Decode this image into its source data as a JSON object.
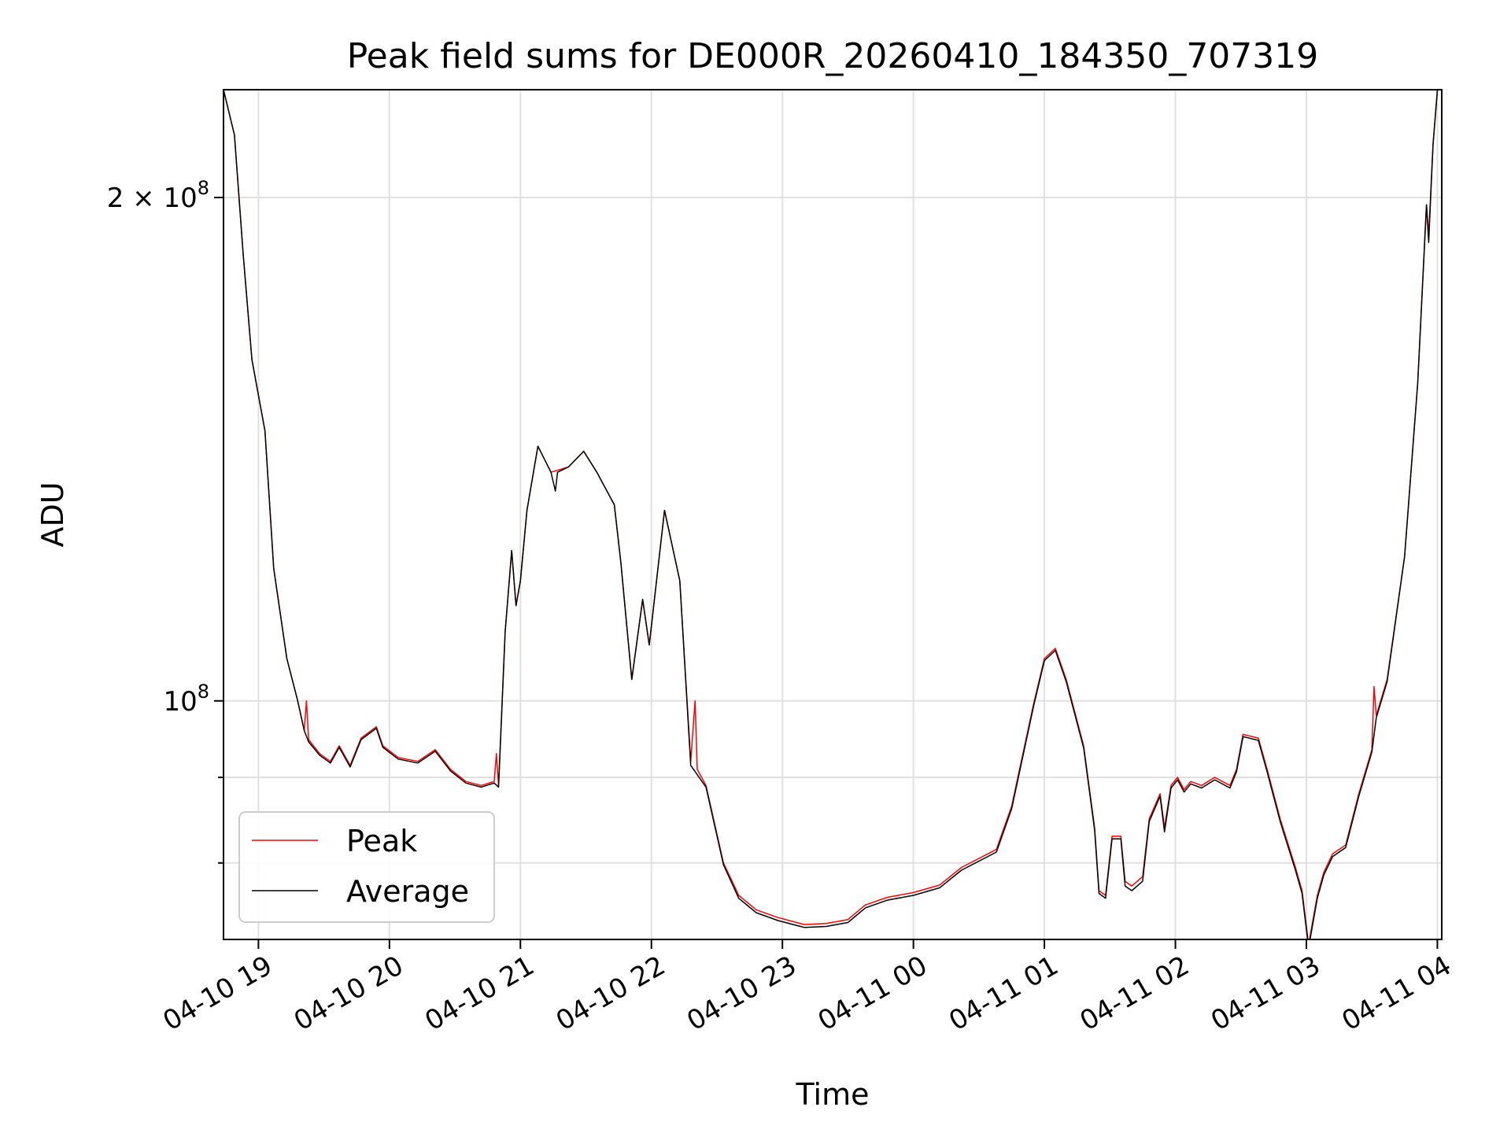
{
  "chart_data": {
    "type": "line",
    "title": "Peak field sums for DE000R_20260410_184350_707319",
    "xlabel": "Time",
    "ylabel": "ADU",
    "y_scale": "log",
    "grid": true,
    "legend_placement": "lower-left",
    "xlim": [
      "2026-04-10 18:44",
      "2026-04-11 04:02"
    ],
    "ylim": [
      72000000,
      232000000
    ],
    "x_ticks": [
      "04-10 19",
      "04-10 20",
      "04-10 21",
      "04-10 22",
      "04-10 23",
      "04-11 00",
      "04-11 01",
      "04-11 02",
      "04-11 03",
      "04-11 04"
    ],
    "y_ticks": [
      {
        "value": 200000000,
        "label": "2 × 10^8",
        "mantissa": "2",
        "exponent": "8"
      },
      {
        "value": 100000000,
        "label": "10^8",
        "mantissa": "",
        "exponent": "8"
      }
    ],
    "series": [
      {
        "name": "Peak",
        "color": "#ff0000",
        "points": [
          [
            "2026-04-10 18:44",
            232000000
          ],
          [
            "2026-04-10 18:49",
            218000000
          ],
          [
            "2026-04-10 18:53",
            185000000
          ],
          [
            "2026-04-10 18:57",
            160000000
          ],
          [
            "2026-04-10 19:03",
            145000000
          ],
          [
            "2026-04-10 19:07",
            120000000
          ],
          [
            "2026-04-10 19:13",
            106000000
          ],
          [
            "2026-04-10 19:18",
            100000000
          ],
          [
            "2026-04-10 19:21",
            96000000
          ],
          [
            "2026-04-10 19:22",
            100000000
          ],
          [
            "2026-04-10 19:23",
            94800000
          ],
          [
            "2026-04-10 19:28",
            93000000
          ],
          [
            "2026-04-10 19:33",
            92000000
          ],
          [
            "2026-04-10 19:37",
            94000000
          ],
          [
            "2026-04-10 19:42",
            91500000
          ],
          [
            "2026-04-10 19:47",
            95000000
          ],
          [
            "2026-04-10 19:54",
            96500000
          ],
          [
            "2026-04-10 19:57",
            94000000
          ],
          [
            "2026-04-10 20:04",
            92500000
          ],
          [
            "2026-04-10 20:13",
            92000000
          ],
          [
            "2026-04-10 20:21",
            93500000
          ],
          [
            "2026-04-10 20:28",
            91000000
          ],
          [
            "2026-04-10 20:35",
            89500000
          ],
          [
            "2026-04-10 20:42",
            89000000
          ],
          [
            "2026-04-10 20:48",
            89500000
          ],
          [
            "2026-04-10 20:49",
            93000000
          ],
          [
            "2026-04-10 20:50",
            89000000
          ],
          [
            "2026-04-10 20:53",
            110000000
          ],
          [
            "2026-04-10 20:56",
            123000000
          ],
          [
            "2026-04-10 20:58",
            114000000
          ],
          [
            "2026-04-10 21:00",
            118000000
          ],
          [
            "2026-04-10 21:03",
            130000000
          ],
          [
            "2026-04-10 21:08",
            142000000
          ],
          [
            "2026-04-10 21:14",
            137000000
          ],
          [
            "2026-04-10 21:22",
            138000000
          ],
          [
            "2026-04-10 21:29",
            141000000
          ],
          [
            "2026-04-10 21:35",
            137000000
          ],
          [
            "2026-04-10 21:43",
            131000000
          ],
          [
            "2026-04-10 21:46",
            121000000
          ],
          [
            "2026-04-10 21:51",
            103000000
          ],
          [
            "2026-04-10 21:56",
            115000000
          ],
          [
            "2026-04-10 21:59",
            108000000
          ],
          [
            "2026-04-10 22:06",
            130000000
          ],
          [
            "2026-04-10 22:13",
            118000000
          ],
          [
            "2026-04-10 22:18",
            92000000
          ],
          [
            "2026-04-10 22:20",
            100000000
          ],
          [
            "2026-04-10 22:21",
            91000000
          ],
          [
            "2026-04-10 22:25",
            89000000
          ],
          [
            "2026-04-10 22:33",
            80000000
          ],
          [
            "2026-04-10 22:40",
            76500000
          ],
          [
            "2026-04-10 22:48",
            75000000
          ],
          [
            "2026-04-10 22:58",
            74200000
          ],
          [
            "2026-04-10 23:10",
            73500000
          ],
          [
            "2026-04-10 23:20",
            73600000
          ],
          [
            "2026-04-10 23:30",
            74000000
          ],
          [
            "2026-04-10 23:38",
            75500000
          ],
          [
            "2026-04-10 23:48",
            76300000
          ],
          [
            "2026-04-11 00:00",
            76800000
          ],
          [
            "2026-04-11 00:12",
            77600000
          ],
          [
            "2026-04-11 00:22",
            79500000
          ],
          [
            "2026-04-11 00:38",
            81500000
          ],
          [
            "2026-04-11 00:45",
            86500000
          ],
          [
            "2026-04-11 00:55",
            99500000
          ],
          [
            "2026-04-11 01:00",
            106000000
          ],
          [
            "2026-04-11 01:05",
            107500000
          ],
          [
            "2026-04-11 01:10",
            103000000
          ],
          [
            "2026-04-11 01:18",
            94000000
          ],
          [
            "2026-04-11 01:23",
            84000000
          ],
          [
            "2026-04-11 01:25",
            77000000
          ],
          [
            "2026-04-11 01:28",
            76500000
          ],
          [
            "2026-04-11 01:31",
            83000000
          ],
          [
            "2026-04-11 01:35",
            83000000
          ],
          [
            "2026-04-11 01:37",
            78000000
          ],
          [
            "2026-04-11 01:40",
            77500000
          ],
          [
            "2026-04-11 01:45",
            78500000
          ],
          [
            "2026-04-11 01:48",
            85000000
          ],
          [
            "2026-04-11 01:53",
            88000000
          ],
          [
            "2026-04-11 01:55",
            84000000
          ],
          [
            "2026-04-11 01:58",
            89000000
          ],
          [
            "2026-04-11 02:01",
            90000000
          ],
          [
            "2026-04-11 02:04",
            88500000
          ],
          [
            "2026-04-11 02:07",
            89500000
          ],
          [
            "2026-04-11 02:12",
            89000000
          ],
          [
            "2026-04-11 02:18",
            90000000
          ],
          [
            "2026-04-11 02:25",
            89000000
          ],
          [
            "2026-04-11 02:28",
            91000000
          ],
          [
            "2026-04-11 02:31",
            95500000
          ],
          [
            "2026-04-11 02:38",
            95000000
          ],
          [
            "2026-04-11 02:42",
            91000000
          ],
          [
            "2026-04-11 02:48",
            85000000
          ],
          [
            "2026-04-11 02:55",
            79500000
          ],
          [
            "2026-04-11 02:58",
            77000000
          ],
          [
            "2026-04-11 03:01",
            71500000
          ],
          [
            "2026-04-11 03:05",
            76500000
          ],
          [
            "2026-04-11 03:08",
            79000000
          ],
          [
            "2026-04-11 03:12",
            81000000
          ],
          [
            "2026-04-11 03:18",
            82000000
          ],
          [
            "2026-04-11 03:24",
            88000000
          ],
          [
            "2026-04-11 03:30",
            93500000
          ],
          [
            "2026-04-11 03:31",
            102000000
          ],
          [
            "2026-04-11 03:32",
            98000000
          ],
          [
            "2026-04-11 03:37",
            103000000
          ],
          [
            "2026-04-11 03:45",
            122000000
          ],
          [
            "2026-04-11 03:51",
            155000000
          ],
          [
            "2026-04-11 03:55",
            198000000
          ],
          [
            "2026-04-11 03:56",
            190000000
          ],
          [
            "2026-04-11 03:58",
            215000000
          ],
          [
            "2026-04-11 04:00",
            232000000
          ]
        ]
      },
      {
        "name": "Average",
        "color": "#000000",
        "points": [
          [
            "2026-04-10 18:44",
            232000000
          ],
          [
            "2026-04-10 18:49",
            218000000
          ],
          [
            "2026-04-10 18:53",
            185000000
          ],
          [
            "2026-04-10 18:57",
            160000000
          ],
          [
            "2026-04-10 19:03",
            145000000
          ],
          [
            "2026-04-10 19:07",
            120000000
          ],
          [
            "2026-04-10 19:13",
            106000000
          ],
          [
            "2026-04-10 19:18",
            100000000
          ],
          [
            "2026-04-10 19:21",
            96000000
          ],
          [
            "2026-04-10 19:23",
            94500000
          ],
          [
            "2026-04-10 19:28",
            92800000
          ],
          [
            "2026-04-10 19:33",
            91800000
          ],
          [
            "2026-04-10 19:37",
            93800000
          ],
          [
            "2026-04-10 19:42",
            91300000
          ],
          [
            "2026-04-10 19:47",
            94800000
          ],
          [
            "2026-04-10 19:54",
            96300000
          ],
          [
            "2026-04-10 19:57",
            93800000
          ],
          [
            "2026-04-10 20:04",
            92300000
          ],
          [
            "2026-04-10 20:13",
            91800000
          ],
          [
            "2026-04-10 20:21",
            93300000
          ],
          [
            "2026-04-10 20:28",
            90800000
          ],
          [
            "2026-04-10 20:35",
            89300000
          ],
          [
            "2026-04-10 20:42",
            88800000
          ],
          [
            "2026-04-10 20:48",
            89300000
          ],
          [
            "2026-04-10 20:50",
            88800000
          ],
          [
            "2026-04-10 20:53",
            110000000
          ],
          [
            "2026-04-10 20:56",
            123000000
          ],
          [
            "2026-04-10 20:58",
            114000000
          ],
          [
            "2026-04-10 21:00",
            118000000
          ],
          [
            "2026-04-10 21:03",
            130000000
          ],
          [
            "2026-04-10 21:08",
            142000000
          ],
          [
            "2026-04-10 21:14",
            137000000
          ],
          [
            "2026-04-10 21:16",
            133500000
          ],
          [
            "2026-04-10 21:17",
            137000000
          ],
          [
            "2026-04-10 21:22",
            138000000
          ],
          [
            "2026-04-10 21:29",
            141000000
          ],
          [
            "2026-04-10 21:35",
            137000000
          ],
          [
            "2026-04-10 21:43",
            131000000
          ],
          [
            "2026-04-10 21:46",
            121000000
          ],
          [
            "2026-04-10 21:51",
            103000000
          ],
          [
            "2026-04-10 21:56",
            115000000
          ],
          [
            "2026-04-10 21:59",
            108000000
          ],
          [
            "2026-04-10 22:06",
            130000000
          ],
          [
            "2026-04-10 22:13",
            118000000
          ],
          [
            "2026-04-10 22:18",
            91500000
          ],
          [
            "2026-04-10 22:25",
            88800000
          ],
          [
            "2026-04-10 22:33",
            79800000
          ],
          [
            "2026-04-10 22:40",
            76200000
          ],
          [
            "2026-04-10 22:48",
            74700000
          ],
          [
            "2026-04-10 22:58",
            73900000
          ],
          [
            "2026-04-10 23:10",
            73200000
          ],
          [
            "2026-04-10 23:20",
            73300000
          ],
          [
            "2026-04-10 23:30",
            73700000
          ],
          [
            "2026-04-10 23:38",
            75200000
          ],
          [
            "2026-04-10 23:48",
            76000000
          ],
          [
            "2026-04-11 00:00",
            76500000
          ],
          [
            "2026-04-11 00:12",
            77300000
          ],
          [
            "2026-04-11 00:22",
            79200000
          ],
          [
            "2026-04-11 00:38",
            81200000
          ],
          [
            "2026-04-11 00:45",
            86200000
          ],
          [
            "2026-04-11 00:55",
            99200000
          ],
          [
            "2026-04-11 01:00",
            105700000
          ],
          [
            "2026-04-11 01:05",
            107200000
          ],
          [
            "2026-04-11 01:10",
            102700000
          ],
          [
            "2026-04-11 01:18",
            93700000
          ],
          [
            "2026-04-11 01:23",
            83700000
          ],
          [
            "2026-04-11 01:25",
            76700000
          ],
          [
            "2026-04-11 01:28",
            76200000
          ],
          [
            "2026-04-11 01:31",
            82700000
          ],
          [
            "2026-04-11 01:35",
            82700000
          ],
          [
            "2026-04-11 01:37",
            77500000
          ],
          [
            "2026-04-11 01:40",
            77000000
          ],
          [
            "2026-04-11 01:45",
            78000000
          ],
          [
            "2026-04-11 01:48",
            84700000
          ],
          [
            "2026-04-11 01:53",
            87700000
          ],
          [
            "2026-04-11 01:55",
            83500000
          ],
          [
            "2026-04-11 01:58",
            88700000
          ],
          [
            "2026-04-11 02:01",
            89700000
          ],
          [
            "2026-04-11 02:04",
            88200000
          ],
          [
            "2026-04-11 02:07",
            89200000
          ],
          [
            "2026-04-11 02:12",
            88700000
          ],
          [
            "2026-04-11 02:18",
            89700000
          ],
          [
            "2026-04-11 02:25",
            88700000
          ],
          [
            "2026-04-11 02:28",
            90700000
          ],
          [
            "2026-04-11 02:31",
            95200000
          ],
          [
            "2026-04-11 02:38",
            94700000
          ],
          [
            "2026-04-11 02:42",
            90700000
          ],
          [
            "2026-04-11 02:48",
            84700000
          ],
          [
            "2026-04-11 02:55",
            79200000
          ],
          [
            "2026-04-11 02:58",
            76700000
          ],
          [
            "2026-04-11 03:01",
            71200000
          ],
          [
            "2026-04-11 03:05",
            76200000
          ],
          [
            "2026-04-11 03:08",
            78700000
          ],
          [
            "2026-04-11 03:12",
            80700000
          ],
          [
            "2026-04-11 03:18",
            81700000
          ],
          [
            "2026-04-11 03:24",
            87700000
          ],
          [
            "2026-04-11 03:30",
            93200000
          ],
          [
            "2026-04-11 03:32",
            97700000
          ],
          [
            "2026-04-11 03:37",
            102700000
          ],
          [
            "2026-04-11 03:45",
            122000000
          ],
          [
            "2026-04-11 03:51",
            155000000
          ],
          [
            "2026-04-11 03:55",
            198000000
          ],
          [
            "2026-04-11 03:56",
            188000000
          ],
          [
            "2026-04-11 03:58",
            215000000
          ],
          [
            "2026-04-11 04:00",
            232000000
          ]
        ]
      }
    ]
  }
}
